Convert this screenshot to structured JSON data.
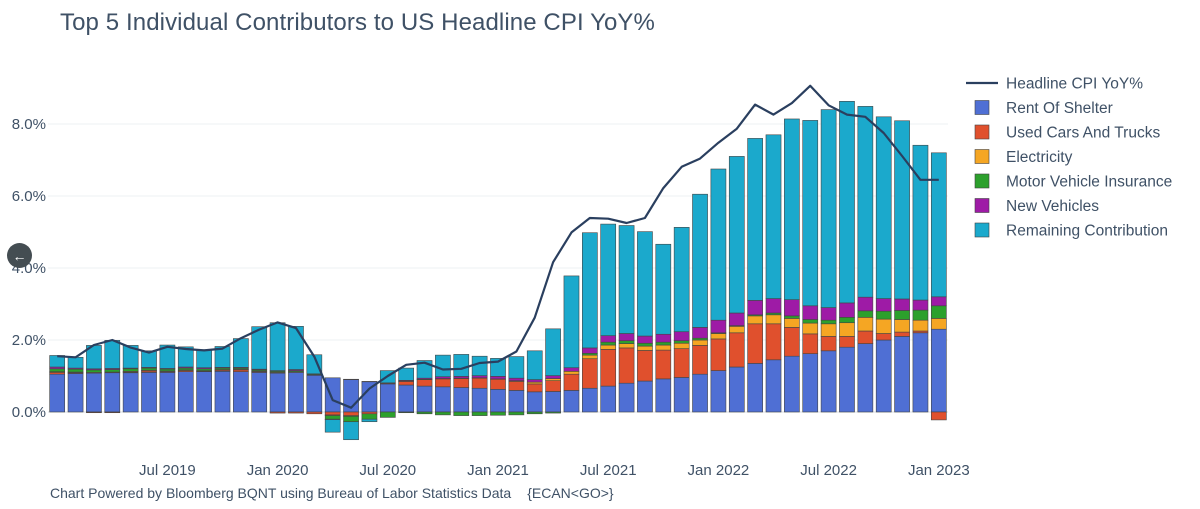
{
  "title": "Top 5 Individual Contributors to US Headline CPI YoY%",
  "footer": {
    "credit": "Chart Powered by Bloomberg BQNT using Bureau of Labor Statistics Data",
    "code": "{ECAN<GO>}"
  },
  "nav": {
    "back_icon": "←"
  },
  "colors": {
    "Rent Of Shelter": "#4f6fd4",
    "Used Cars And Trucks": "#e0502d",
    "Electricity": "#f5a623",
    "Motor Vehicle Insurance": "#2ca02c",
    "New Vehicles": "#9e1ba6",
    "Remaining Contribution": "#1ba9cc",
    "Headline CPI YoY%": "#2a3f5f"
  },
  "chart_data": {
    "type": "bar",
    "stacked": true,
    "title": "Top 5 Individual Contributors to US Headline CPI YoY%",
    "xlabel": "",
    "ylabel": "",
    "ylim": [
      -0.9,
      9.3
    ],
    "y_ticks": [
      "0.0%",
      "2.0%",
      "4.0%",
      "6.0%",
      "8.0%"
    ],
    "y_tick_values": [
      0,
      2,
      4,
      6,
      8
    ],
    "x_tick_labels": [
      "Jul 2019",
      "Jan 2020",
      "Jul 2020",
      "Jan 2021",
      "Jul 2021",
      "Jan 2022",
      "Jul 2022",
      "Jan 2023"
    ],
    "x_tick_categories": [
      "2019-07",
      "2020-01",
      "2020-07",
      "2021-01",
      "2021-07",
      "2022-01",
      "2022-07",
      "2023-01"
    ],
    "grid": true,
    "legend_position": "right",
    "categories": [
      "2019-01",
      "2019-02",
      "2019-03",
      "2019-04",
      "2019-05",
      "2019-06",
      "2019-07",
      "2019-08",
      "2019-09",
      "2019-10",
      "2019-11",
      "2019-12",
      "2020-01",
      "2020-02",
      "2020-03",
      "2020-04",
      "2020-05",
      "2020-06",
      "2020-07",
      "2020-08",
      "2020-09",
      "2020-10",
      "2020-11",
      "2020-12",
      "2021-01",
      "2021-02",
      "2021-03",
      "2021-04",
      "2021-05",
      "2021-06",
      "2021-07",
      "2021-08",
      "2021-09",
      "2021-10",
      "2021-11",
      "2021-12",
      "2022-01",
      "2022-02",
      "2022-03",
      "2022-04",
      "2022-05",
      "2022-06",
      "2022-07",
      "2022-08",
      "2022-09",
      "2022-10",
      "2022-11",
      "2022-12",
      "2023-01"
    ],
    "series": [
      {
        "name": "Rent Of Shelter",
        "values": [
          1.05,
          1.07,
          1.08,
          1.09,
          1.09,
          1.1,
          1.1,
          1.12,
          1.12,
          1.13,
          1.12,
          1.1,
          1.08,
          1.1,
          1.02,
          0.95,
          0.9,
          0.84,
          0.78,
          0.75,
          0.72,
          0.7,
          0.68,
          0.66,
          0.63,
          0.6,
          0.56,
          0.57,
          0.6,
          0.66,
          0.72,
          0.8,
          0.86,
          0.92,
          0.96,
          1.05,
          1.15,
          1.25,
          1.35,
          1.45,
          1.55,
          1.62,
          1.7,
          1.8,
          1.9,
          2.0,
          2.1,
          2.2,
          2.3
        ]
      },
      {
        "name": "Used Cars And Trucks",
        "values": [
          0.05,
          0.02,
          -0.02,
          -0.02,
          0.02,
          0.04,
          0.02,
          0.03,
          0.01,
          0.03,
          0.05,
          0.02,
          -0.03,
          -0.03,
          -0.05,
          -0.08,
          -0.1,
          -0.05,
          0.02,
          0.1,
          0.18,
          0.22,
          0.25,
          0.28,
          0.28,
          0.25,
          0.22,
          0.3,
          0.45,
          0.82,
          1.02,
          0.98,
          0.85,
          0.8,
          0.8,
          0.8,
          0.88,
          0.95,
          1.1,
          1.0,
          0.8,
          0.55,
          0.4,
          0.3,
          0.35,
          0.18,
          0.12,
          0.05,
          -0.22
        ]
      },
      {
        "name": "Electricity",
        "values": [
          0.02,
          0.02,
          0.02,
          0.02,
          0.02,
          0.02,
          0.02,
          0.02,
          0.02,
          0.02,
          0.02,
          0.02,
          0.02,
          0.02,
          0.01,
          -0.02,
          -0.02,
          0.0,
          0.0,
          0.01,
          0.01,
          0.01,
          0.01,
          0.01,
          0.01,
          0.02,
          0.05,
          0.06,
          0.08,
          0.1,
          0.12,
          0.12,
          0.12,
          0.14,
          0.15,
          0.15,
          0.15,
          0.18,
          0.22,
          0.25,
          0.25,
          0.3,
          0.35,
          0.38,
          0.38,
          0.4,
          0.35,
          0.3,
          0.3
        ]
      },
      {
        "name": "Motor Vehicle Insurance",
        "values": [
          0.08,
          0.08,
          0.07,
          0.07,
          0.07,
          0.06,
          0.05,
          0.05,
          0.05,
          0.04,
          0.03,
          0.03,
          0.03,
          0.03,
          0.02,
          -0.1,
          -0.15,
          -0.15,
          -0.15,
          -0.02,
          -0.05,
          -0.08,
          -0.1,
          -0.1,
          -0.09,
          -0.08,
          -0.05,
          -0.03,
          0.0,
          0.05,
          0.08,
          0.08,
          0.08,
          0.08,
          0.07,
          0.05,
          0.02,
          0.02,
          0.03,
          0.05,
          0.07,
          0.1,
          0.1,
          0.15,
          0.18,
          0.22,
          0.25,
          0.28,
          0.35
        ]
      },
      {
        "name": "New Vehicles",
        "values": [
          0.05,
          0.03,
          0.03,
          0.03,
          0.02,
          0.02,
          0.02,
          0.03,
          0.03,
          0.02,
          0.02,
          0.02,
          0.02,
          0.03,
          0.01,
          -0.01,
          0.01,
          0.01,
          0.01,
          0.02,
          0.03,
          0.05,
          0.05,
          0.06,
          0.07,
          0.07,
          0.07,
          0.08,
          0.1,
          0.15,
          0.18,
          0.2,
          0.2,
          0.22,
          0.25,
          0.3,
          0.35,
          0.35,
          0.4,
          0.4,
          0.45,
          0.38,
          0.35,
          0.4,
          0.38,
          0.35,
          0.32,
          0.28,
          0.25
        ]
      },
      {
        "name": "Remaining Contribution",
        "values": [
          0.32,
          0.3,
          0.65,
          0.78,
          0.63,
          0.46,
          0.65,
          0.56,
          0.5,
          0.58,
          0.8,
          1.18,
          1.33,
          1.2,
          0.53,
          -0.35,
          -0.5,
          -0.07,
          0.34,
          0.34,
          0.49,
          0.6,
          0.61,
          0.54,
          0.5,
          0.6,
          0.8,
          1.3,
          2.55,
          3.2,
          3.1,
          3.0,
          2.9,
          2.5,
          2.9,
          3.7,
          4.2,
          4.35,
          4.5,
          4.55,
          5.02,
          5.15,
          5.5,
          5.6,
          5.3,
          5.05,
          4.95,
          4.3,
          4.0
        ]
      },
      {
        "name": "Headline CPI YoY%",
        "type": "line",
        "values": [
          1.55,
          1.52,
          1.86,
          2.0,
          1.79,
          1.65,
          1.81,
          1.75,
          1.71,
          1.76,
          2.05,
          2.29,
          2.49,
          2.33,
          1.54,
          0.33,
          0.12,
          0.65,
          1.0,
          1.31,
          1.37,
          1.18,
          1.2,
          1.36,
          1.4,
          1.68,
          2.62,
          4.16,
          4.99,
          5.39,
          5.37,
          5.25,
          5.39,
          6.22,
          6.81,
          7.04,
          7.48,
          7.87,
          8.54,
          8.26,
          8.58,
          9.06,
          8.52,
          8.26,
          8.2,
          7.75,
          7.11,
          6.45,
          6.45
        ]
      }
    ]
  }
}
